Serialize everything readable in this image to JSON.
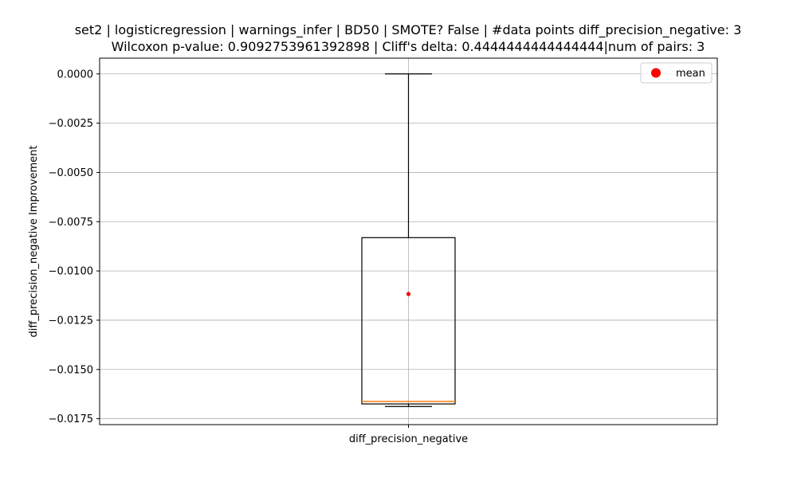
{
  "chart_data": {
    "type": "box",
    "title_line1": "set2 | logisticregression | warnings_infer | BD50 | SMOTE? False | #data points diff_precision_negative: 3",
    "title_line2": "Wilcoxon p-value: 0.9092753961392898 | Cliff's delta: 0.4444444444444444|num of pairs: 3",
    "xlabel": "",
    "ylabel": "diff_precision_negative Improvement",
    "categories": [
      "diff_precision_negative"
    ],
    "ylim": [
      -0.0178,
      0.0008
    ],
    "yticks": [
      0.0,
      -0.0025,
      -0.005,
      -0.0075,
      -0.01,
      -0.0125,
      -0.015,
      -0.0175
    ],
    "ytick_labels": [
      "0.0000",
      "−0.0025",
      "−0.0050",
      "−0.0075",
      "−0.0100",
      "−0.0125",
      "−0.0150",
      "−0.0175"
    ],
    "grid": true,
    "legend": {
      "entries": [
        "mean"
      ],
      "placement": "upper right"
    },
    "box": {
      "whisker_low": -0.01688,
      "q1": -0.01675,
      "median": -0.01662,
      "q3": -0.00831,
      "whisker_high": 0.0,
      "mean": -0.01117
    },
    "colors": {
      "median": "#ff7f0e",
      "mean": "#ff0000",
      "grid": "#b0b0b0",
      "box": "#000000"
    }
  }
}
